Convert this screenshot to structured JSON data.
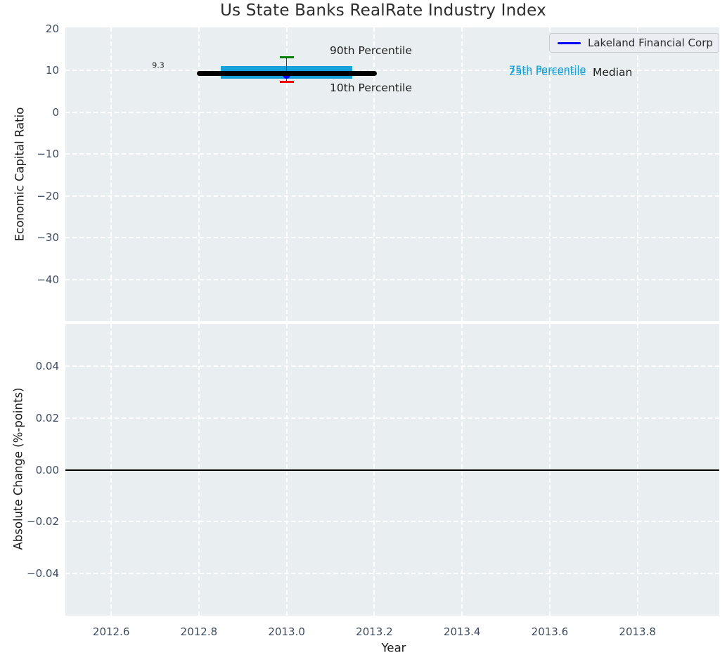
{
  "title": "Us State Banks RealRate Industry Index",
  "legend": {
    "label": "Lakeland Financial Corp"
  },
  "annotations": {
    "p90_label": "90th Percentile",
    "p10_label": "10th Percentile",
    "p75_label": "75th Percentile",
    "p25_label": "25th Percentile",
    "median_label": "Median",
    "median_value_label": "9.3"
  },
  "colors": {
    "figure_bg": "#ffffff",
    "axes_bg": "#e9eef0",
    "grid": "#ffffff",
    "band": "#18a0d8",
    "median_line": "#000000",
    "company_line": "#0000ff",
    "p90_cap": "#008000",
    "p10_cap": "#ee0000",
    "whisker": "#3c3c3c",
    "tick_label": "#3e4c61",
    "zero_line": "#000000",
    "legend_bg": "#ebedf3",
    "legend_border": "#c9cbd2",
    "percentile_text": "#18a0d8"
  },
  "chart_data": {
    "type": "line",
    "subtype": "percentile-band-index",
    "title": "Us State Banks RealRate Industry Index",
    "xlabel": "Year",
    "xlim": [
      2012.4955,
      2013.9865
    ],
    "xticks": {
      "values": [
        2012.6,
        2012.8,
        2013.0,
        2013.2,
        2013.4,
        2013.6,
        2013.8
      ],
      "labels": [
        "2012.6",
        "2012.8",
        "2013.0",
        "2013.2",
        "2013.4",
        "2013.6",
        "2013.8"
      ]
    },
    "grid": "white dashed on light gray",
    "legend_position": "upper right",
    "panels": {
      "top": {
        "ylabel": "Economic Capital Ratio",
        "ylim": [
          -49.95,
          20.3
        ],
        "ytick_values": [
          20,
          10,
          0,
          -10,
          -20,
          -30,
          -40
        ],
        "ytick_labels": [
          "20",
          "10",
          "0",
          "−10",
          "−20",
          "−30",
          "−40"
        ],
        "series": [
          {
            "name": "Lakeland Financial Corp",
            "x": [
              2013.0
            ],
            "y": [
              9.3
            ],
            "marker": "dot"
          }
        ],
        "industry": {
          "x": 2013.0,
          "median": 9.3,
          "p25": 8.0,
          "p75": 11.1,
          "p10": 7.2,
          "p90": 13.2,
          "median_line_xspan": [
            2012.795,
            2013.205
          ],
          "band_xspan": [
            2012.85,
            2013.15
          ],
          "cap_halfwidth_x": 0.016
        }
      },
      "bottom": {
        "ylabel": "Absolute Change (%-points)",
        "ylim": [
          -0.0562,
          0.0562
        ],
        "ytick_values": [
          0.04,
          0.02,
          0.0,
          -0.02,
          -0.04
        ],
        "ytick_labels": [
          "0.04",
          "0.02",
          "0.00",
          "−0.02",
          "−0.04"
        ],
        "zero_line_y": 0.0,
        "series": []
      }
    }
  }
}
